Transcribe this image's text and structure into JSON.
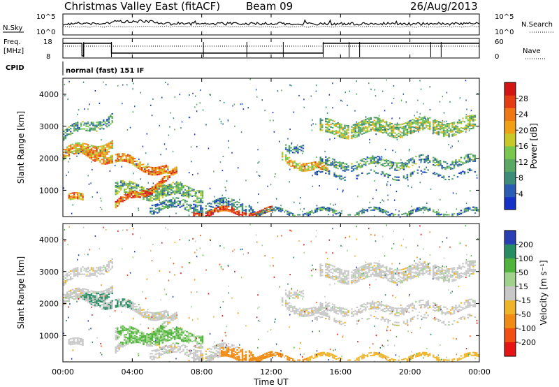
{
  "header": {
    "station": "Christmas Valley East (fitACF)",
    "beam": "Beam 09",
    "date": "26/Aug/2013"
  },
  "status_panels": {
    "nsky_label": "N.Sky",
    "nsky_ticks": [
      "10^5",
      "10^0"
    ],
    "nsearch_label": "N.Search",
    "nsearch_ticks": [
      "10^5",
      "10^0"
    ],
    "freq_label": "Freq.",
    "freq_unit": "[MHz]",
    "freq_ticks": [
      "18",
      "8"
    ],
    "nave_label": "Nave",
    "nave_ticks": [
      "60",
      "0"
    ],
    "cpid_label": "CPID",
    "cpid_value": "normal (fast) 151 IF"
  },
  "chart_data": [
    {
      "type": "heatmap",
      "name": "power",
      "ylabel": "Slant Range [km]",
      "ylim": [
        180,
        4500
      ],
      "y_ticks": [
        "1000",
        "2000",
        "3000",
        "4000"
      ],
      "y_tick_values": [
        1000,
        2000,
        3000,
        4000
      ],
      "colorbar": {
        "label": "Power [dB]",
        "ticks": [
          "4",
          "8",
          "12",
          "16",
          "20",
          "24",
          "28"
        ],
        "tick_values": [
          4,
          8,
          12,
          16,
          20,
          24,
          28
        ],
        "range": [
          0,
          32
        ],
        "colors": [
          "#1432c8",
          "#2a5cb4",
          "#3c8c78",
          "#5aa864",
          "#78c850",
          "#c8c828",
          "#f0a014",
          "#f07814",
          "#e63c14",
          "#d21414"
        ]
      }
    },
    {
      "type": "heatmap",
      "name": "velocity",
      "ylabel": "Slant Range [km]",
      "ylim": [
        180,
        4500
      ],
      "y_ticks": [
        "1000",
        "2000",
        "3000",
        "4000"
      ],
      "y_tick_values": [
        1000,
        2000,
        3000,
        4000
      ],
      "colorbar": {
        "label": "Velocity [m s⁻¹]",
        "ticks": [
          "200",
          "100",
          "50",
          "15",
          "-15",
          "-50",
          "-100",
          "-200"
        ],
        "colors": [
          "#2840b4",
          "#288c64",
          "#50b43c",
          "#a0d28c",
          "#c8c8c8",
          "#f0b428",
          "#f08c14",
          "#f05014",
          "#e61414"
        ]
      }
    }
  ],
  "time_axis": {
    "xlabel": "Time UT",
    "ticks": [
      "00:00",
      "04:00",
      "08:00",
      "12:00",
      "16:00",
      "20:00",
      "00:00"
    ],
    "tick_hours": [
      0,
      4,
      8,
      12,
      16,
      20,
      24
    ],
    "range_hours": [
      0,
      24
    ]
  }
}
